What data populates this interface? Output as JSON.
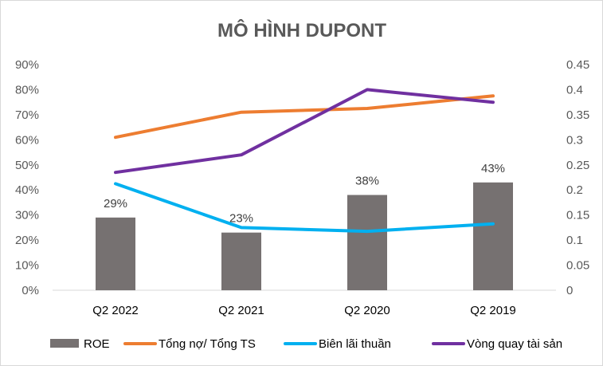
{
  "chart_data": {
    "type": "bar",
    "title": "MÔ HÌNH DUPONT",
    "categories": [
      "Q2 2022",
      "Q2 2021",
      "Q2 2020",
      "Q2 2019"
    ],
    "ylim": [
      0,
      0.9
    ],
    "y2lim": [
      0,
      0.45
    ],
    "yticks": [
      "0%",
      "10%",
      "20%",
      "30%",
      "40%",
      "50%",
      "60%",
      "70%",
      "80%",
      "90%"
    ],
    "y2ticks": [
      "0",
      "0.05",
      "0.1",
      "0.15",
      "0.2",
      "0.25",
      "0.3",
      "0.35",
      "0.4",
      "0.45"
    ],
    "grid": false,
    "legend_position": "bottom",
    "series": [
      {
        "name": "ROE",
        "type": "bar",
        "axis": "left",
        "color": "#767171",
        "values": [
          0.29,
          0.23,
          0.38,
          0.43
        ],
        "labels": [
          "29%",
          "23%",
          "38%",
          "43%"
        ]
      },
      {
        "name": "Tổng nợ/ Tổng TS",
        "type": "line",
        "axis": "left",
        "color": "#ed7d31",
        "values": [
          0.61,
          0.71,
          0.725,
          0.775
        ]
      },
      {
        "name": "Biên lãi thuần",
        "type": "line",
        "axis": "left",
        "color": "#00b0f0",
        "values": [
          0.425,
          0.25,
          0.235,
          0.265
        ]
      },
      {
        "name": "Vòng quay tài sản",
        "type": "line",
        "axis": "right",
        "color": "#7030a0",
        "values": [
          0.235,
          0.27,
          0.4,
          0.375
        ]
      }
    ]
  }
}
